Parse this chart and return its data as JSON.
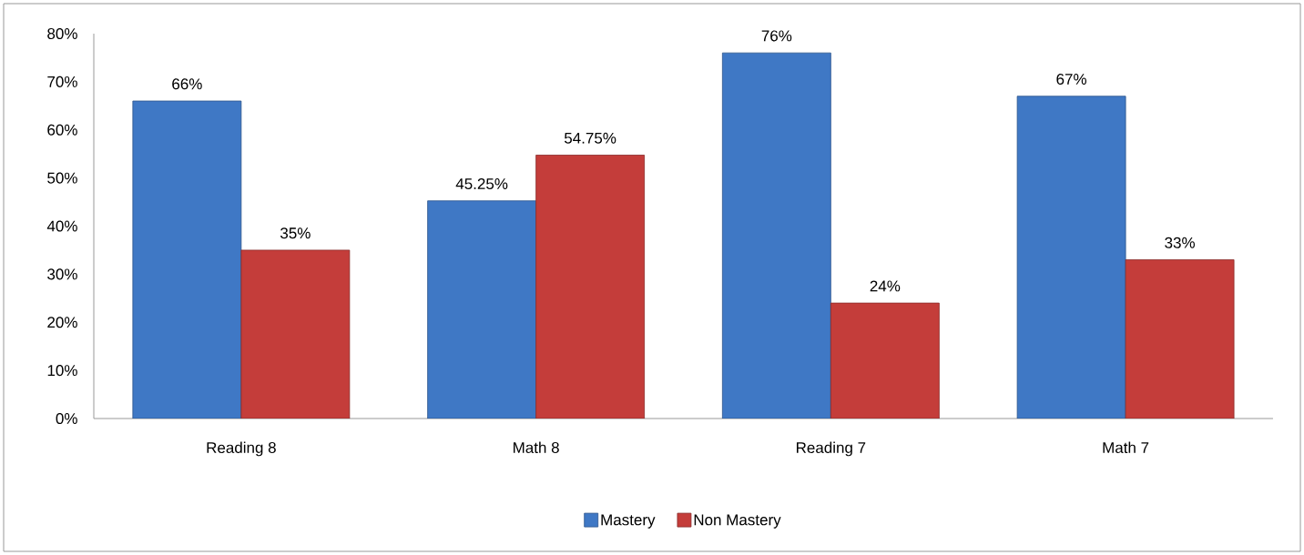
{
  "chart_data": {
    "type": "bar",
    "categories": [
      "Reading 8",
      "Math 8",
      "Reading 7",
      "Math 7"
    ],
    "series": [
      {
        "name": "Mastery",
        "color": "#3f78c5",
        "values": [
          66,
          45.25,
          76,
          67
        ],
        "value_labels": [
          "66%",
          "45.25%",
          "76%",
          "67%"
        ]
      },
      {
        "name": "Non Mastery",
        "color": "#c43d3a",
        "values": [
          35,
          54.75,
          24,
          33
        ],
        "value_labels": [
          "35%",
          "54.75%",
          "24%",
          "33%"
        ]
      }
    ],
    "ylim": [
      0,
      80
    ],
    "yticks": [
      {
        "value": 0,
        "label": "0%"
      },
      {
        "value": 10,
        "label": "10%"
      },
      {
        "value": 20,
        "label": "20%"
      },
      {
        "value": 30,
        "label": "30%"
      },
      {
        "value": 40,
        "label": "40%"
      },
      {
        "value": 50,
        "label": "50%"
      },
      {
        "value": 60,
        "label": "60%"
      },
      {
        "value": 70,
        "label": "70%"
      },
      {
        "value": 80,
        "label": "80%"
      }
    ],
    "legend": "bottom"
  }
}
